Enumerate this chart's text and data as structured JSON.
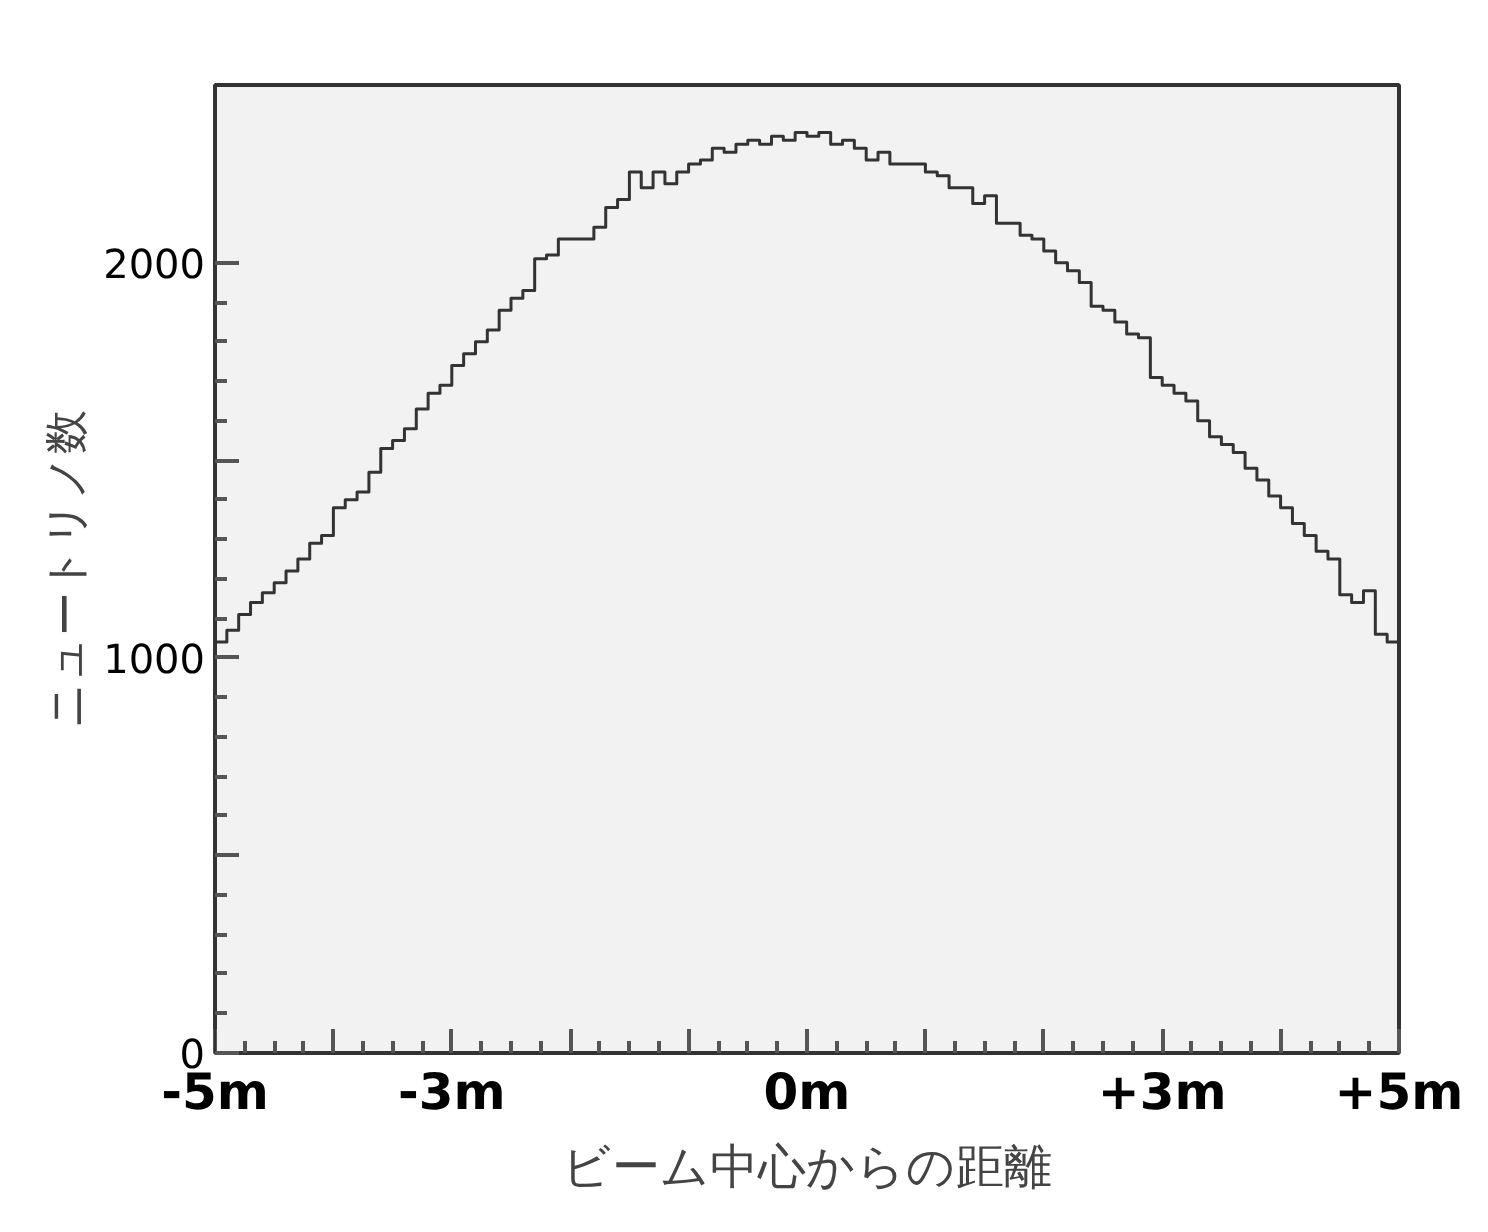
{
  "chart_data": {
    "type": "histogram",
    "xlabel": "ビーム中心からの距離",
    "ylabel": "ニュートリノ数",
    "color": "#333333",
    "bins": [
      -5.0,
      -4.9,
      -4.8,
      -4.7,
      -4.6,
      -4.5,
      -4.4,
      -4.3,
      -4.2,
      -4.1,
      -4.0,
      -3.9,
      -3.8,
      -3.7,
      -3.6,
      -3.5,
      -3.4,
      -3.3,
      -3.2,
      -3.1,
      -3.0,
      -2.9,
      -2.8,
      -2.7,
      -2.6,
      -2.5,
      -2.4,
      -2.3,
      -2.2,
      -2.1,
      -2.0,
      -1.9,
      -1.8,
      -1.7,
      -1.6,
      -1.5,
      -1.4,
      -1.3,
      -1.2,
      -1.1,
      -1.0,
      -0.9,
      -0.8,
      -0.7,
      -0.6,
      -0.5,
      -0.4,
      -0.3,
      -0.2,
      -0.1,
      0.0,
      0.1,
      0.2,
      0.3,
      0.4,
      0.5,
      0.6,
      0.7,
      0.8,
      0.9,
      1.0,
      1.1,
      1.2,
      1.3,
      1.4,
      1.5,
      1.6,
      1.7,
      1.8,
      1.9,
      2.0,
      2.1,
      2.2,
      2.3,
      2.4,
      2.5,
      2.6,
      2.7,
      2.8,
      2.9,
      3.0,
      3.1,
      3.2,
      3.3,
      3.4,
      3.5,
      3.6,
      3.7,
      3.8,
      3.9,
      4.0,
      4.1,
      4.2,
      4.3,
      4.4,
      4.5,
      4.6,
      4.7,
      4.8,
      4.9,
      5.0
    ],
    "values": [
      1040,
      1070,
      1110,
      1140,
      1165,
      1190,
      1220,
      1250,
      1290,
      1310,
      1380,
      1400,
      1420,
      1470,
      1530,
      1550,
      1580,
      1630,
      1670,
      1690,
      1740,
      1770,
      1800,
      1830,
      1880,
      1910,
      1930,
      2010,
      2020,
      2060,
      2060,
      2060,
      2090,
      2140,
      2160,
      2230,
      2190,
      2230,
      2200,
      2230,
      2250,
      2260,
      2290,
      2280,
      2300,
      2310,
      2300,
      2320,
      2310,
      2330,
      2320,
      2330,
      2300,
      2310,
      2290,
      2260,
      2280,
      2250,
      2250,
      2250,
      2230,
      2220,
      2190,
      2190,
      2150,
      2170,
      2100,
      2100,
      2070,
      2060,
      2030,
      2000,
      1980,
      1950,
      1890,
      1880,
      1850,
      1820,
      1810,
      1710,
      1690,
      1670,
      1650,
      1600,
      1560,
      1540,
      1520,
      1480,
      1450,
      1410,
      1380,
      1340,
      1310,
      1270,
      1250,
      1160,
      1140,
      1170,
      1060,
      1040
    ],
    "xlim": [
      -5,
      5
    ],
    "ylim": [
      0,
      2450
    ],
    "xticks": [
      {
        "value": -5,
        "label": "-5m"
      },
      {
        "value": -4,
        "label": null
      },
      {
        "value": -3,
        "label": "-3m"
      },
      {
        "value": -2,
        "label": null
      },
      {
        "value": -1,
        "label": null
      },
      {
        "value": 0,
        "label": "0m"
      },
      {
        "value": 1,
        "label": null
      },
      {
        "value": 2,
        "label": null
      },
      {
        "value": 3,
        "label": "+3m"
      },
      {
        "value": 4,
        "label": null
      },
      {
        "value": 5,
        "label": "+5m"
      }
    ],
    "yticks": [
      0,
      {
        "value": 500,
        "label": null
      },
      1000,
      {
        "value": 1500,
        "label": null
      },
      2000
    ],
    "grid": false
  }
}
